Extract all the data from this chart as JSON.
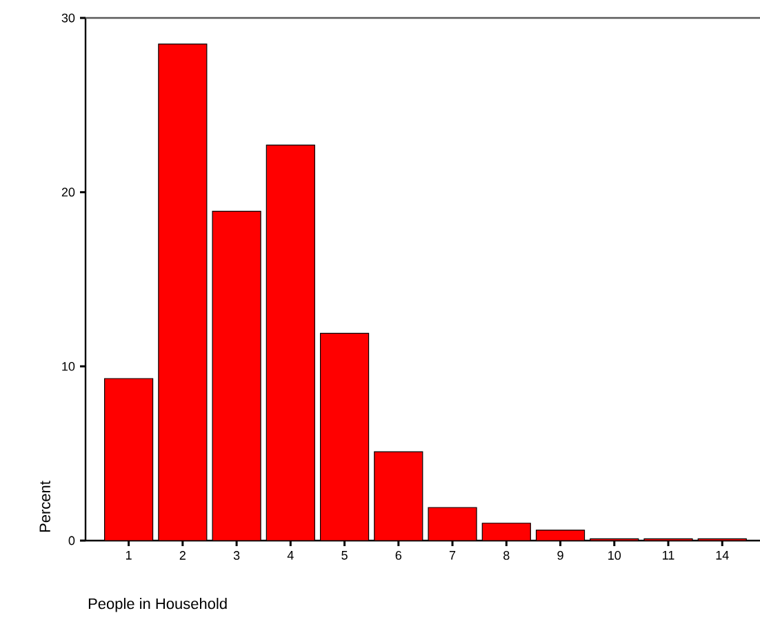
{
  "chart_data": {
    "type": "bar",
    "xlabel": "People in Household",
    "ylabel": "Percent",
    "categories": [
      "1",
      "2",
      "3",
      "4",
      "5",
      "6",
      "7",
      "8",
      "9",
      "10",
      "11",
      "14"
    ],
    "values": [
      9.3,
      28.5,
      18.9,
      22.7,
      11.9,
      5.1,
      1.9,
      1.0,
      0.6,
      0.1,
      0.1,
      0.1
    ],
    "color": "#ff0000",
    "ylim": [
      0,
      30
    ],
    "yticks": [
      0,
      10,
      20,
      30
    ]
  }
}
